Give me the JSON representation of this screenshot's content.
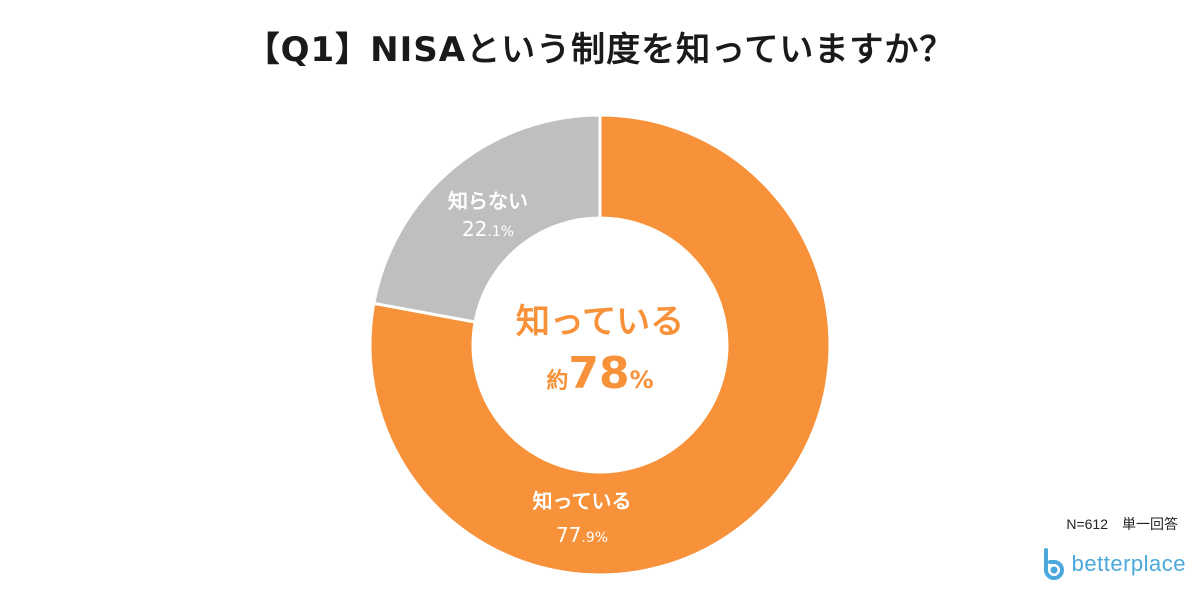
{
  "title": "【Q1】NISAという制度を知っていますか？",
  "chart_data": {
    "type": "pie",
    "donut": true,
    "categories": [
      "知っている",
      "知らない"
    ],
    "values": [
      77.9,
      22.1
    ],
    "value_int": [
      "77",
      "22"
    ],
    "value_dec": [
      ".9%",
      ".1%"
    ],
    "colors": [
      "#f7923a",
      "#bfbfbf"
    ],
    "center": {
      "label": "知っている",
      "prefix": "約",
      "value": "78",
      "unit": "%"
    }
  },
  "note": "N=612　単一回答",
  "logo": {
    "text": "betterplace",
    "color": "#4aa8dc"
  }
}
